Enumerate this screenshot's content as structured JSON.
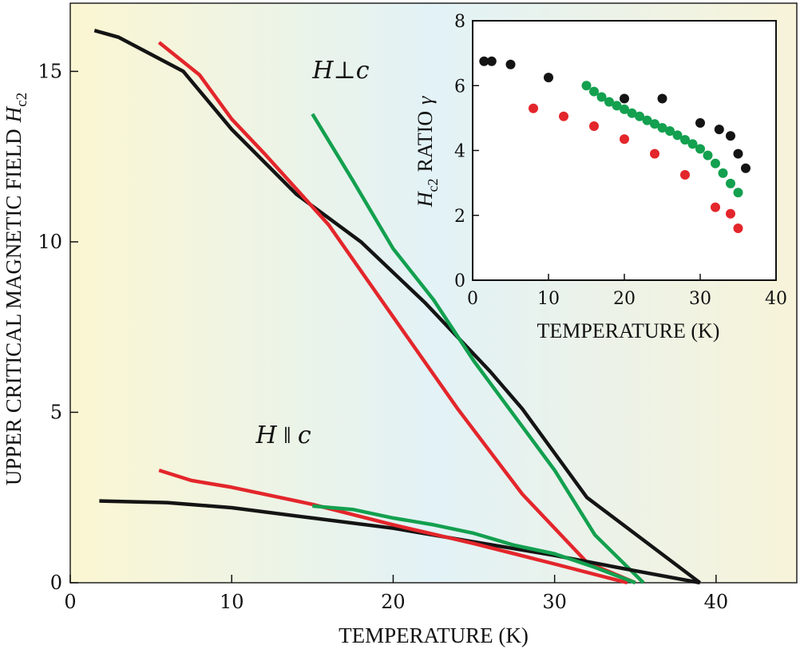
{
  "colors": {
    "black_series": "#141414",
    "red_series": "#e3262b",
    "green_series": "#13a04f",
    "bg_left": "#fbf6d2",
    "bg_mid": "#e2f2f6",
    "bg_right": "#f7f3d9"
  },
  "chart_data": [
    {
      "type": "line",
      "title": "",
      "xlabel": "TEMPERATURE (K)",
      "ylabel_prefix": "UPPER CRITICAL MAGNETIC FIELD",
      "ylabel_symbol": "H",
      "ylabel_sub": "c2",
      "xlim": [
        0,
        45
      ],
      "ylim": [
        0,
        17
      ],
      "xticks": [
        0,
        10,
        20,
        30,
        40
      ],
      "yticks": [
        0,
        5,
        10,
        15
      ],
      "annotations": [
        {
          "id": "perp",
          "base": "H",
          "sym": "⊥",
          "var": "c",
          "x": 15,
          "y": 14.8
        },
        {
          "id": "par",
          "base": "H",
          "sym": "∥",
          "var": "c",
          "x": 11.5,
          "y": 4.1
        }
      ],
      "series": [
        {
          "name": "black-perp",
          "color": "black_series",
          "x": [
            1.5,
            3,
            7,
            10,
            14,
            18,
            22,
            26,
            28,
            32,
            39
          ],
          "y": [
            16.2,
            16.0,
            15.0,
            13.3,
            11.4,
            10.0,
            8.2,
            6.2,
            5.1,
            2.5,
            0.0
          ]
        },
        {
          "name": "red-perp",
          "color": "red_series",
          "x": [
            5.5,
            8,
            10,
            12,
            16,
            20,
            24,
            28,
            32,
            35
          ],
          "y": [
            15.85,
            14.9,
            13.6,
            12.6,
            10.5,
            7.8,
            5.1,
            2.6,
            0.6,
            0.0
          ]
        },
        {
          "name": "green-perp",
          "color": "green_series",
          "x": [
            15,
            17.5,
            20,
            22.5,
            25,
            27.5,
            30,
            32.5,
            35.5
          ],
          "y": [
            13.75,
            11.8,
            9.8,
            8.3,
            6.5,
            4.9,
            3.3,
            1.4,
            0.0
          ]
        },
        {
          "name": "black-par",
          "color": "black_series",
          "x": [
            1.8,
            6,
            10,
            15,
            20,
            25,
            30,
            35,
            39
          ],
          "y": [
            2.4,
            2.35,
            2.2,
            1.9,
            1.6,
            1.2,
            0.8,
            0.35,
            0.0
          ]
        },
        {
          "name": "red-par",
          "color": "red_series",
          "x": [
            5.5,
            7.5,
            10,
            15,
            20,
            25,
            30,
            34.5
          ],
          "y": [
            3.3,
            3.0,
            2.8,
            2.3,
            1.7,
            1.15,
            0.55,
            0.0
          ]
        },
        {
          "name": "green-par",
          "color": "green_series",
          "x": [
            15,
            17.5,
            20,
            22.5,
            25,
            27.5,
            30,
            32.5,
            35
          ],
          "y": [
            2.25,
            2.15,
            1.9,
            1.7,
            1.45,
            1.1,
            0.85,
            0.45,
            0.0
          ]
        }
      ]
    },
    {
      "type": "scatter",
      "title": "",
      "xlabel": "TEMPERATURE (K)",
      "ylabel_symbol": "H",
      "ylabel_sub": "c2",
      "ylabel_suffix": "RATIO",
      "ylabel_gamma": "γ",
      "xlim": [
        0,
        40
      ],
      "ylim": [
        0,
        8
      ],
      "xticks": [
        0,
        10,
        20,
        30,
        40
      ],
      "yticks": [
        0,
        2,
        4,
        6,
        8
      ],
      "series": [
        {
          "name": "black",
          "color": "black_series",
          "x": [
            1.5,
            2.5,
            5,
            10,
            20,
            25,
            30,
            32.5,
            34,
            35,
            36
          ],
          "y": [
            6.75,
            6.75,
            6.65,
            6.25,
            5.6,
            5.6,
            4.85,
            4.65,
            4.45,
            3.9,
            3.45
          ]
        },
        {
          "name": "red",
          "color": "red_series",
          "x": [
            8,
            12,
            16,
            20,
            24,
            28,
            32,
            34,
            35
          ],
          "y": [
            5.3,
            5.05,
            4.75,
            4.35,
            3.9,
            3.25,
            2.25,
            2.05,
            1.6
          ]
        },
        {
          "name": "green",
          "color": "green_series",
          "x": [
            15,
            16,
            17,
            18,
            19,
            20,
            21,
            22,
            23,
            24,
            25,
            26,
            27,
            28,
            29,
            30,
            31,
            32,
            33,
            34,
            35
          ],
          "y": [
            6.0,
            5.82,
            5.65,
            5.5,
            5.38,
            5.27,
            5.15,
            5.05,
            4.93,
            4.82,
            4.7,
            4.6,
            4.47,
            4.33,
            4.2,
            4.05,
            3.85,
            3.6,
            3.3,
            2.98,
            2.7
          ]
        }
      ]
    }
  ]
}
